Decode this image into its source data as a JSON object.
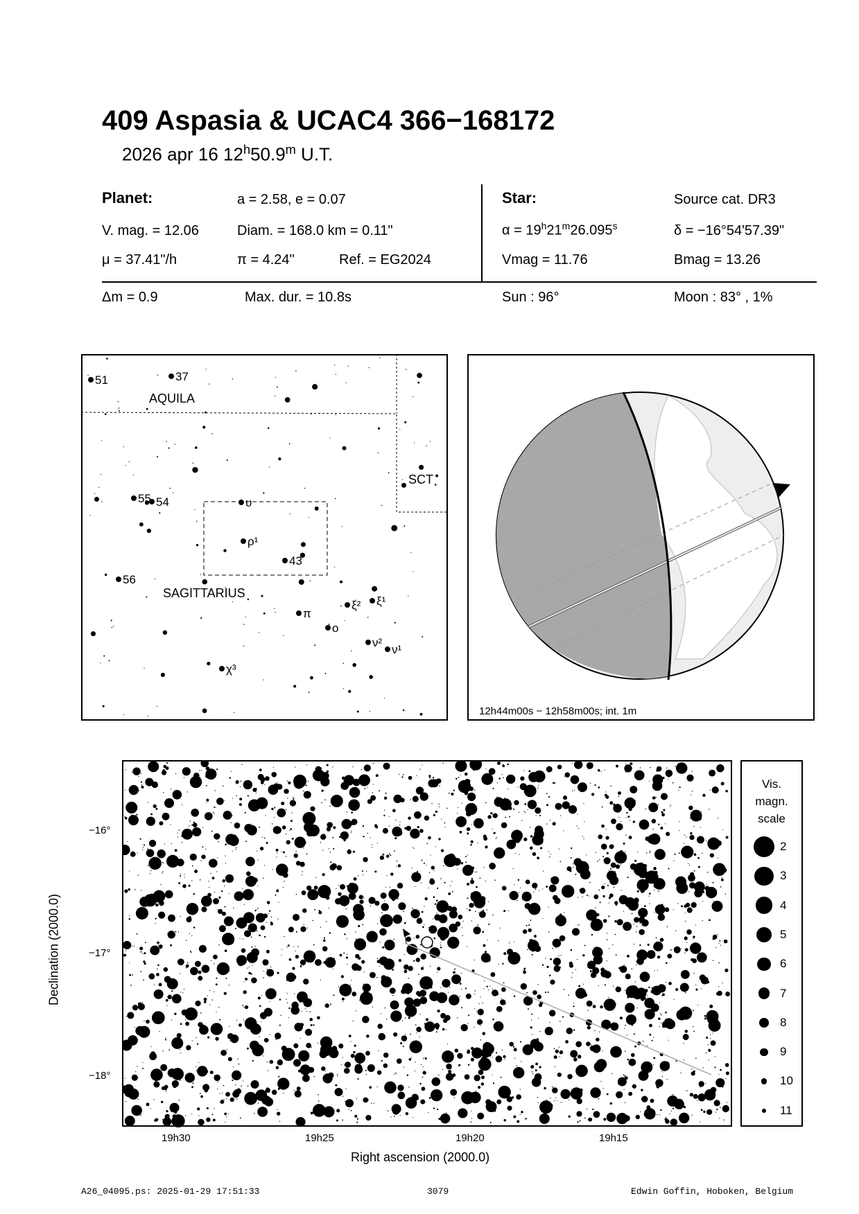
{
  "title": "409 Aspasia  &  UCAC4 366−168172",
  "subtitle": {
    "date": "2026 apr 16  12",
    "h": "h",
    "min": "50.9",
    "m": "m",
    "ut": " U.T."
  },
  "planet": {
    "label": "Planet:",
    "ae": "a = 2.58, e = 0.07",
    "vmag": "V. mag. = 12.06",
    "diam": "Diam. = 168.0 km = 0.11\"",
    "mu": "μ =  37.41\"/h",
    "pi": "π =  4.24\"",
    "ref": "Ref. = EG2024"
  },
  "star": {
    "label": "Star:",
    "source": "Source cat.  DR3",
    "ra_a": "α = 19",
    "ra_h": "h",
    "ra_b": "21",
    "ra_m": "m",
    "ra_c": "26.095",
    "ra_s": "s",
    "dec": "δ = −16°54'57.39\"",
    "vmag": "Vmag = 11.76",
    "bmag": "Bmag = 13.26"
  },
  "event": {
    "dm": "Δm = 0.9",
    "maxdur": "Max. dur. = 10.8s",
    "sun": "Sun :  96°",
    "moon": "Moon :  83° ,  1%"
  },
  "finder": {
    "labels": [
      "51",
      "37",
      "AQUILA",
      "SCT",
      "55",
      "54",
      "υ",
      "ρ¹",
      "43",
      "56",
      "SAGITTARIUS",
      "π",
      "ξ²",
      "ξ¹",
      "o",
      "ν²",
      "ν¹",
      "χ³"
    ]
  },
  "globe": {
    "caption": "12h44m00s − 12h58m00s; int.  1m"
  },
  "chart": {
    "ylabel": "Declination (2000.0)",
    "xlabel": "Right ascension (2000.0)",
    "yticks": [
      "−16°",
      "−17°",
      "−18°"
    ],
    "xticks": [
      "19h30",
      "19h25",
      "19h20",
      "19h15"
    ]
  },
  "legend": {
    "title1": "Vis.",
    "title2": "magn.",
    "title3": "scale",
    "mags": [
      "2",
      "3",
      "4",
      "5",
      "6",
      "7",
      "8",
      "9",
      "10",
      "11"
    ]
  },
  "footer": {
    "file": "A26_04095.ps: 2025-01-29 17:51:33",
    "num": "3079",
    "author": "Edwin Goffin, Hoboken, Belgium"
  }
}
